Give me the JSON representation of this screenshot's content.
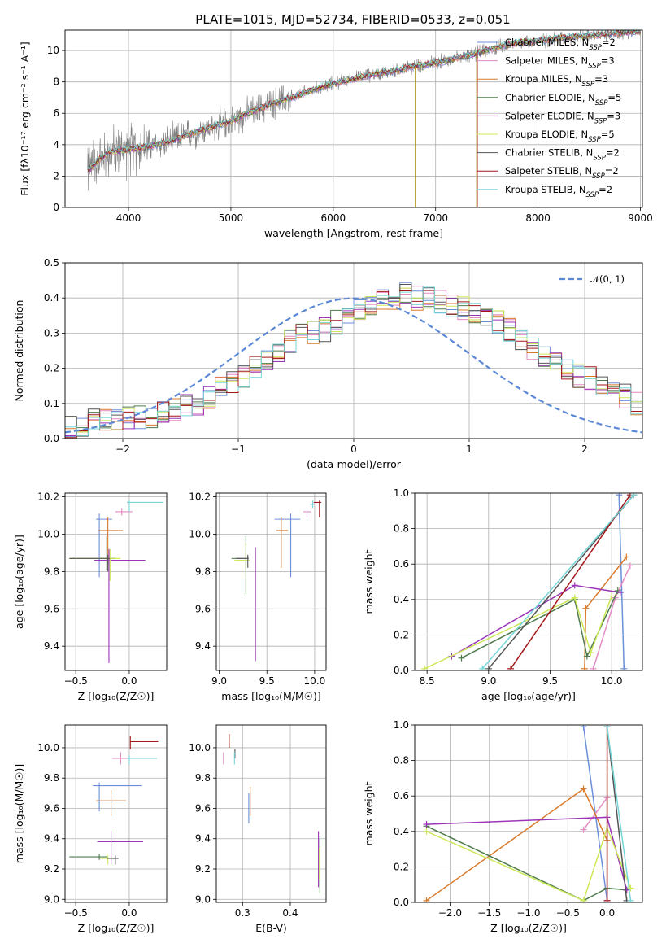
{
  "figure_title": "PLATE=1015, MJD=52734, FIBERID=0533, z=0.051",
  "models": [
    {
      "name": "Chabrier MILES",
      "nssp": "2",
      "color": "#6b8fd8"
    },
    {
      "name": "Salpeter MILES",
      "nssp": "3",
      "color": "#e38ac3"
    },
    {
      "name": "Kroupa MILES",
      "nssp": "3",
      "color": "#d97a2b"
    },
    {
      "name": "Chabrier ELODIE",
      "nssp": "5",
      "color": "#4f7c4c"
    },
    {
      "name": "Salpeter ELODIE",
      "nssp": "3",
      "color": "#9b35b8"
    },
    {
      "name": "Kroupa ELODIE",
      "nssp": "5",
      "color": "#cde85a"
    },
    {
      "name": "Chabrier STELIB",
      "nssp": "2",
      "color": "#555555"
    },
    {
      "name": "Salpeter STELIB",
      "nssp": "2",
      "color": "#a3161b"
    },
    {
      "name": "Kroupa STELIB",
      "nssp": "2",
      "color": "#76d6d8"
    }
  ],
  "legend_nssp_prefix": "N",
  "legend_nssp_sub": "SSP",
  "normal_legend": "𝒩(0, 1)",
  "chart_data": [
    {
      "id": "spectrum",
      "type": "line",
      "xlabel": "wavelength [Angstrom, rest frame]",
      "ylabel": "Flux [fλ10⁻¹⁷ erg cm⁻² s⁻¹ A⁻¹]",
      "xlim": [
        3380,
        9020
      ],
      "ylim": [
        0,
        11.3
      ],
      "xticks": [
        4000,
        5000,
        6000,
        7000,
        8000,
        9000
      ],
      "yticks": [
        0,
        2,
        4,
        6,
        8,
        10
      ],
      "legend_position": "top-right",
      "data_color": "#808080",
      "data_x_range": [
        3600,
        9000
      ],
      "continuum": [
        [
          3600,
          2.3
        ],
        [
          3700,
          3.0
        ],
        [
          3800,
          3.5
        ],
        [
          4000,
          3.7
        ],
        [
          4200,
          3.9
        ],
        [
          4400,
          4.2
        ],
        [
          4600,
          4.7
        ],
        [
          4800,
          5.1
        ],
        [
          5000,
          5.5
        ],
        [
          5200,
          6.1
        ],
        [
          5400,
          6.6
        ],
        [
          5600,
          7.0
        ],
        [
          5800,
          7.5
        ],
        [
          6000,
          7.9
        ],
        [
          6200,
          8.2
        ],
        [
          6400,
          8.5
        ],
        [
          6600,
          8.7
        ],
        [
          6800,
          9.0
        ],
        [
          7000,
          9.2
        ],
        [
          7200,
          9.5
        ],
        [
          7400,
          9.8
        ],
        [
          7600,
          10.2
        ],
        [
          7800,
          10.5
        ],
        [
          8000,
          10.6
        ],
        [
          8200,
          10.8
        ],
        [
          8400,
          10.9
        ],
        [
          8600,
          11.0
        ],
        [
          8800,
          11.1
        ],
        [
          9000,
          11.2
        ]
      ],
      "dropouts": [
        6800,
        7400
      ]
    },
    {
      "id": "residuals",
      "type": "step",
      "xlabel": "(data-model)/error",
      "ylabel": "Normed distribution",
      "xlim": [
        -2.5,
        2.5
      ],
      "ylim": [
        0,
        0.5
      ],
      "xticks": [
        -2,
        -1,
        0,
        1,
        2
      ],
      "yticks": [
        0.0,
        0.1,
        0.2,
        0.3,
        0.4,
        0.5
      ],
      "bin_width": 0.1,
      "bin_start": -2.5,
      "base_hist": [
        0.03,
        0.04,
        0.05,
        0.05,
        0.05,
        0.06,
        0.06,
        0.06,
        0.07,
        0.08,
        0.09,
        0.1,
        0.12,
        0.14,
        0.16,
        0.18,
        0.2,
        0.22,
        0.25,
        0.28,
        0.3,
        0.3,
        0.31,
        0.33,
        0.35,
        0.37,
        0.38,
        0.39,
        0.4,
        0.41,
        0.4,
        0.4,
        0.39,
        0.38,
        0.37,
        0.36,
        0.34,
        0.33,
        0.31,
        0.28,
        0.26,
        0.24,
        0.22,
        0.2,
        0.18,
        0.17,
        0.15,
        0.13,
        0.12,
        0.1,
        0.09,
        0.08,
        0.07,
        0.06,
        0.05,
        0.05,
        0.04,
        0.04,
        0.03,
        0.03
      ],
      "normal_curve": {
        "mean": 0,
        "sigma": 1,
        "color": "#5b88d6"
      },
      "legend_position": "top-right"
    },
    {
      "id": "age_Z",
      "type": "errorbar",
      "xlabel": "Z [log₁₀(Z/Z☉)]",
      "ylabel": "age  [log₁₀(age/yr)]",
      "xlim": [
        -0.6,
        0.35
      ],
      "ylim": [
        9.27,
        10.22
      ],
      "xticks": [
        -0.5,
        0.0
      ],
      "xticklabels": [
        "−0.5",
        "0.0"
      ],
      "yticks": [
        9.4,
        9.6,
        9.8,
        10.0,
        10.2
      ],
      "points": [
        {
          "x": -0.28,
          "xerr": [
            0.03,
            0.12
          ],
          "y": 10.08,
          "yerr": [
            0.31,
            0.03
          ]
        },
        {
          "x": -0.07,
          "xerr": [
            0.06,
            0.1
          ],
          "y": 10.12,
          "yerr": [
            0.02,
            0.02
          ]
        },
        {
          "x": -0.2,
          "xerr": [
            0.09,
            0.14
          ],
          "y": 10.02,
          "yerr": [
            0.18,
            0.07
          ]
        },
        {
          "x": -0.21,
          "xerr": [
            0.34,
            0.08
          ],
          "y": 9.87,
          "yerr": [
            0.06,
            0.12
          ]
        },
        {
          "x": -0.19,
          "xerr": [
            0.14,
            0.34
          ],
          "y": 9.86,
          "yerr": [
            0.55,
            0.06
          ]
        },
        {
          "x": -0.18,
          "xerr": [
            0.38,
            0.1
          ],
          "y": 9.87,
          "yerr": [
            0.12,
            0.05
          ]
        },
        {
          "x": -0.2,
          "xerr": [
            0.36,
            0.02
          ],
          "y": 9.87,
          "yerr": [
            0.07,
            0.02
          ]
        },
        {
          "x": 0.0,
          "xerr": [
            0.02,
            0.0
          ],
          "y": 10.17,
          "yerr": [
            0.0,
            0.0
          ]
        },
        {
          "x": 0.0,
          "xerr": [
            0.02,
            0.32
          ],
          "y": 10.17,
          "yerr": [
            0.05,
            0.01
          ]
        }
      ]
    },
    {
      "id": "age_mass",
      "type": "errorbar",
      "xlabel": "mass [log₁₀(M/M☉)]",
      "ylabel": "",
      "xlim": [
        8.97,
        10.12
      ],
      "ylim": [
        9.27,
        10.22
      ],
      "xticks": [
        9.0,
        9.5,
        10.0
      ],
      "yticks": [
        9.4,
        9.6,
        9.8,
        10.0,
        10.2
      ],
      "points": [
        {
          "x": 9.75,
          "xerr": [
            0.17,
            0.1
          ],
          "y": 10.08,
          "yerr": [
            0.31,
            0.03
          ]
        },
        {
          "x": 9.92,
          "xerr": [
            0.04,
            0.04
          ],
          "y": 10.12,
          "yerr": [
            0.03,
            0.02
          ]
        },
        {
          "x": 9.65,
          "xerr": [
            0.05,
            0.07
          ],
          "y": 10.02,
          "yerr": [
            0.2,
            0.07
          ]
        },
        {
          "x": 9.28,
          "xerr": [
            0.15,
            0.03
          ],
          "y": 9.87,
          "yerr": [
            0.19,
            0.12
          ]
        },
        {
          "x": 9.38,
          "xerr": [
            0.0,
            0.0
          ],
          "y": 9.87,
          "yerr": [
            0.55,
            0.06
          ]
        },
        {
          "x": 9.28,
          "xerr": [
            0.12,
            0.04
          ],
          "y": 9.86,
          "yerr": [
            0.1,
            0.1
          ]
        },
        {
          "x": 9.3,
          "xerr": [
            0.12,
            0.01
          ],
          "y": 9.87,
          "yerr": [
            0.05,
            0.02
          ]
        },
        {
          "x": 10.05,
          "xerr": [
            0.06,
            0.02
          ],
          "y": 10.17,
          "yerr": [
            0.08,
            0.01
          ]
        },
        {
          "x": 9.98,
          "xerr": [
            0.03,
            0.02
          ],
          "y": 10.16,
          "yerr": [
            0.02,
            0.02
          ]
        }
      ]
    },
    {
      "id": "mw_age",
      "type": "line",
      "xlabel": "age  [log₁₀(age/yr)]",
      "ylabel": "mass weight",
      "xlim": [
        8.4,
        10.25
      ],
      "ylim": [
        0,
        1
      ],
      "xticks": [
        8.5,
        9.0,
        9.5,
        10.0
      ],
      "yticks": [
        0.0,
        0.2,
        0.4,
        0.6,
        0.8,
        1.0
      ],
      "series": [
        {
          "x": [
            10.06,
            10.1
          ],
          "y": [
            0.99,
            0.01
          ]
        },
        {
          "x": [
            9.85,
            10.03,
            10.15
          ],
          "y": [
            0.01,
            0.41,
            0.59
          ]
        },
        {
          "x": [
            9.78,
            9.79,
            10.12
          ],
          "y": [
            0.01,
            0.35,
            0.64
          ]
        },
        {
          "x": [
            8.78,
            9.7,
            9.8,
            10.05
          ],
          "y": [
            0.07,
            0.4,
            0.08,
            0.45
          ]
        },
        {
          "x": [
            8.7,
            9.7,
            10.07
          ],
          "y": [
            0.08,
            0.48,
            0.44
          ]
        },
        {
          "x": [
            8.48,
            9.7,
            9.83,
            10.0
          ],
          "y": [
            0.01,
            0.41,
            0.1,
            0.42
          ]
        },
        {
          "x": [
            9.0,
            10.18
          ],
          "y": [
            0.01,
            0.99
          ]
        },
        {
          "x": [
            9.18,
            10.15
          ],
          "y": [
            0.01,
            0.99
          ]
        },
        {
          "x": [
            8.95,
            10.18
          ],
          "y": [
            0.01,
            0.99
          ]
        }
      ]
    },
    {
      "id": "mass_Z",
      "type": "errorbar",
      "xlabel": "Z [log₁₀(Z/Z☉)]",
      "ylabel": "mass [log₁₀(M/M☉)]",
      "xlim": [
        -0.6,
        0.35
      ],
      "ylim": [
        8.98,
        10.15
      ],
      "xticks": [
        -0.5,
        0.0
      ],
      "xticklabels": [
        "−0.5",
        "0.0"
      ],
      "yticks": [
        9.0,
        9.2,
        9.4,
        9.6,
        9.8,
        10.0
      ],
      "points": [
        {
          "x": -0.28,
          "xerr": [
            0.06,
            0.4
          ],
          "y": 9.75,
          "yerr": [
            0.17,
            0.02
          ]
        },
        {
          "x": -0.08,
          "xerr": [
            0.08,
            0.1
          ],
          "y": 9.93,
          "yerr": [
            0.04,
            0.04
          ]
        },
        {
          "x": -0.17,
          "xerr": [
            0.14,
            0.14
          ],
          "y": 9.65,
          "yerr": [
            0.1,
            0.07
          ]
        },
        {
          "x": -0.28,
          "xerr": [
            0.28,
            0.08
          ],
          "y": 9.28,
          "yerr": [
            0.02,
            0.02
          ]
        },
        {
          "x": -0.17,
          "xerr": [
            0.13,
            0.3
          ],
          "y": 9.38,
          "yerr": [
            0.15,
            0.07
          ]
        },
        {
          "x": -0.2,
          "xerr": [
            0.07,
            0.05
          ],
          "y": 9.27,
          "yerr": [
            0.04,
            0.02
          ]
        },
        {
          "x": -0.13,
          "xerr": [
            0.08,
            0.03
          ],
          "y": 9.27,
          "yerr": [
            0.04,
            0.02
          ]
        },
        {
          "x": 0.01,
          "xerr": [
            0.0,
            0.26
          ],
          "y": 10.04,
          "yerr": [
            0.05,
            0.04
          ]
        },
        {
          "x": 0.0,
          "xerr": [
            0.02,
            0.26
          ],
          "y": 9.93,
          "yerr": [
            0.04,
            0.02
          ]
        }
      ]
    },
    {
      "id": "mass_ebv",
      "type": "errorbar",
      "xlabel": "E(B-V)",
      "ylabel": "",
      "xlim": [
        0.245,
        0.475
      ],
      "ylim": [
        8.98,
        10.15
      ],
      "xticks": [
        0.3,
        0.4
      ],
      "yticks": [
        9.0,
        9.2,
        9.4,
        9.6,
        9.8,
        10.0
      ],
      "points": [
        {
          "x": 0.313,
          "xerr": [
            0,
            0
          ],
          "y": 9.65,
          "yerr": [
            0.15,
            0.05
          ]
        },
        {
          "x": 0.26,
          "xerr": [
            0,
            0
          ],
          "y": 9.93,
          "yerr": [
            0.04,
            0.04
          ]
        },
        {
          "x": 0.316,
          "xerr": [
            0,
            0
          ],
          "y": 9.65,
          "yerr": [
            0.1,
            0.09
          ]
        },
        {
          "x": 0.462,
          "xerr": [
            0,
            0
          ],
          "y": 9.28,
          "yerr": [
            0.24,
            0.12
          ]
        },
        {
          "x": 0.459,
          "xerr": [
            0,
            0
          ],
          "y": 9.38,
          "yerr": [
            0.3,
            0.07
          ]
        },
        {
          "x": 0.461,
          "xerr": [
            0,
            0
          ],
          "y": 9.27,
          "yerr": [
            0.14,
            0.07
          ]
        },
        {
          "x": 0.284,
          "xerr": [
            0,
            0
          ],
          "y": 9.95,
          "yerr": [
            0.02,
            0.04
          ]
        },
        {
          "x": 0.272,
          "xerr": [
            0,
            0
          ],
          "y": 10.04,
          "yerr": [
            0.04,
            0.05
          ]
        },
        {
          "x": 0.283,
          "xerr": [
            0,
            0
          ],
          "y": 9.93,
          "yerr": [
            0.04,
            0.04
          ]
        }
      ]
    },
    {
      "id": "mw_Z",
      "type": "line",
      "xlabel": "Z [log₁₀(Z/Z☉)]",
      "ylabel": "mass weight",
      "xlim": [
        -2.45,
        0.45
      ],
      "ylim": [
        0,
        1
      ],
      "xticks": [
        -2.0,
        -1.5,
        -1.0,
        -0.5,
        0.0
      ],
      "xticklabels": [
        "−2.0",
        "−1.5",
        "−1.0",
        "−0.5",
        "0.0"
      ],
      "yticks": [
        0.0,
        0.2,
        0.4,
        0.6,
        0.8,
        1.0
      ],
      "series": [
        {
          "x": [
            -0.3,
            0.0
          ],
          "y": [
            0.99,
            0.01
          ]
        },
        {
          "x": [
            -0.3,
            0.0,
            0.0
          ],
          "y": [
            0.41,
            0.59,
            0.01
          ]
        },
        {
          "x": [
            -2.3,
            -0.3,
            0.0
          ],
          "y": [
            0.01,
            0.64,
            0.35
          ]
        },
        {
          "x": [
            -2.3,
            -0.3,
            0.0,
            0.25
          ],
          "y": [
            0.43,
            0.01,
            0.08,
            0.07
          ]
        },
        {
          "x": [
            -2.3,
            0.0,
            0.25
          ],
          "y": [
            0.44,
            0.48,
            0.07
          ]
        },
        {
          "x": [
            -2.3,
            -0.3,
            0.0,
            0.3
          ],
          "y": [
            0.4,
            0.01,
            0.42,
            0.08
          ]
        },
        {
          "x": [
            0.0,
            0.25
          ],
          "y": [
            0.99,
            0.01
          ]
        },
        {
          "x": [
            0.0,
            0.0
          ],
          "y": [
            0.99,
            0.01
          ]
        },
        {
          "x": [
            0.0,
            0.3
          ],
          "y": [
            0.99,
            0.01
          ]
        }
      ]
    }
  ]
}
